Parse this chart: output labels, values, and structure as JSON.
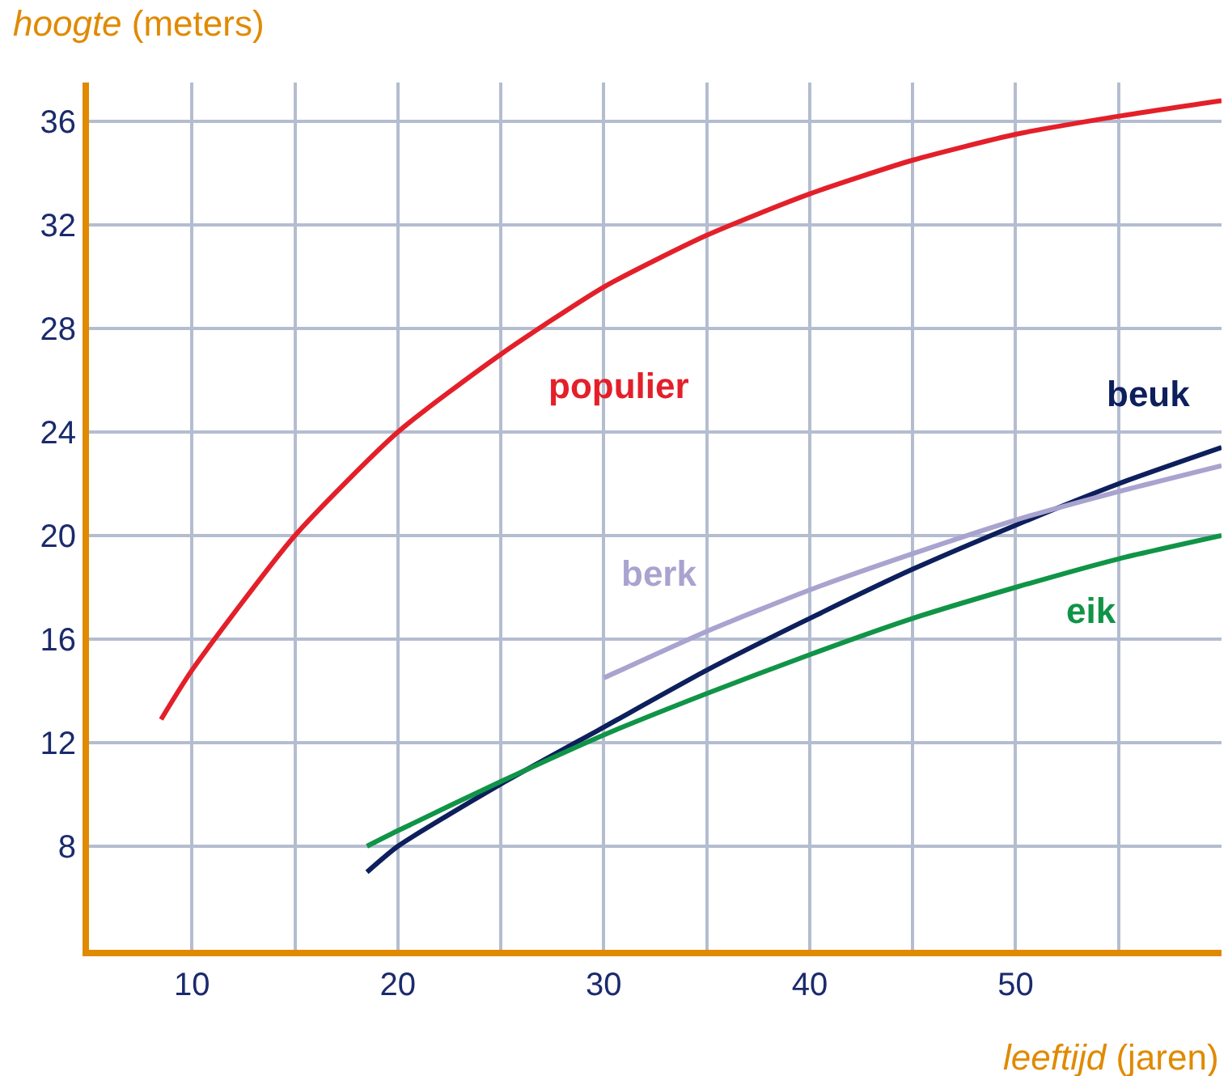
{
  "chart_data": {
    "type": "line",
    "ylabel": "hoogte (meters)",
    "xlabel": "leeftijd (jaren)",
    "xlim": [
      5,
      60
    ],
    "ylim": [
      4,
      37.5
    ],
    "xticks": [
      10,
      {
        "value": 15,
        "label": null
      },
      20,
      {
        "value": 25,
        "label": null
      },
      30,
      {
        "value": 35,
        "label": null
      },
      40,
      {
        "value": 45,
        "label": null
      },
      50,
      {
        "value": 55,
        "label": null
      }
    ],
    "yticks": [
      8,
      12,
      16,
      20,
      24,
      28,
      32,
      36
    ],
    "grid": true,
    "legend": false,
    "marker": "none",
    "line_style": "solid",
    "series": [
      {
        "name": "populier",
        "color": "#e3202a",
        "x": [
          8.5,
          10,
          15,
          20,
          25,
          30,
          35,
          40,
          45,
          50,
          55,
          60
        ],
        "values": [
          12.9,
          14.8,
          20,
          24,
          27,
          29.6,
          31.6,
          33.2,
          34.5,
          35.5,
          36.2,
          36.8
        ]
      },
      {
        "name": "beuk",
        "color": "#0d1f5c",
        "x": [
          18.5,
          20,
          25,
          30,
          35,
          40,
          45,
          50,
          55,
          60
        ],
        "values": [
          7,
          8,
          10.4,
          12.6,
          14.8,
          16.8,
          18.7,
          20.4,
          22,
          23.4
        ]
      },
      {
        "name": "berk",
        "color": "#a9a3cf",
        "x": [
          30,
          35,
          40,
          45,
          50,
          55,
          60
        ],
        "values": [
          14.5,
          16.3,
          17.9,
          19.3,
          20.6,
          21.7,
          22.7
        ]
      },
      {
        "name": "eik",
        "color": "#109447",
        "x": [
          18.5,
          20,
          25,
          30,
          35,
          40,
          45,
          50,
          55,
          60
        ],
        "values": [
          8,
          8.6,
          10.5,
          12.3,
          13.9,
          15.4,
          16.8,
          18,
          19.1,
          20
        ]
      }
    ]
  }
}
